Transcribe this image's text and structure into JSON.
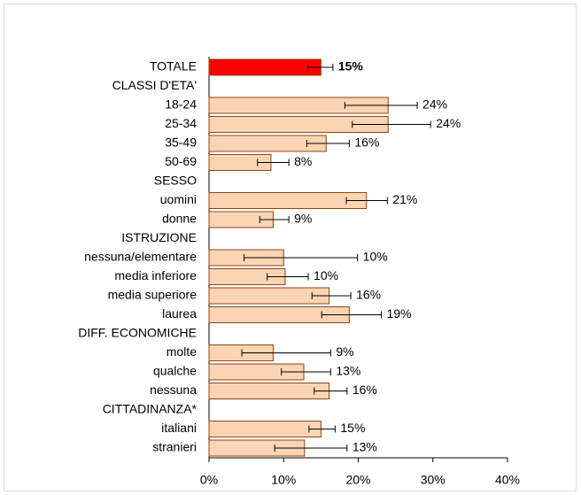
{
  "chart_data": {
    "type": "hbar_error",
    "categories": [
      "TOTALE",
      "CLASSI D'ETA'",
      "18-24",
      "25-34",
      "35-49",
      "50-69",
      "SESSO",
      "uomini",
      "donne",
      "ISTRUZIONE",
      "nessuna/elementare",
      "media inferiore",
      "media superiore",
      "laurea",
      "DIFF. ECONOMICHE",
      "molte",
      "qualche",
      "nessuna",
      "CITTADINANZA*",
      "italiani",
      "stranieri"
    ],
    "values": [
      15,
      null,
      24,
      24,
      15.7,
      8.3,
      null,
      21.1,
      8.6,
      null,
      10,
      10.2,
      16.1,
      18.8,
      null,
      8.6,
      12.7,
      16.1,
      null,
      15,
      12.8
    ],
    "value_labels": [
      "15%",
      null,
      "24%",
      "24%",
      "16%",
      "8%",
      null,
      "21%",
      "9%",
      null,
      "10%",
      "10%",
      "16%",
      "19%",
      null,
      "9%",
      "13%",
      "16%",
      null,
      "15%",
      "13%"
    ],
    "ci_low": [
      13.2,
      null,
      18.2,
      19.2,
      13.1,
      6.5,
      null,
      18.4,
      6.8,
      null,
      4.7,
      7.8,
      13.8,
      15.1,
      null,
      4.4,
      9.7,
      14.1,
      null,
      13.4,
      8.8
    ],
    "ci_high": [
      16.6,
      null,
      27.9,
      29.7,
      18.8,
      10.7,
      null,
      23.9,
      10.7,
      null,
      19.9,
      13.3,
      19.0,
      23.1,
      null,
      16.3,
      16.3,
      18.5,
      null,
      16.9,
      18.5
    ],
    "colors": [
      "#ff0000",
      null,
      "#fbd4b4",
      "#fbd4b4",
      "#fbd4b4",
      "#fbd4b4",
      null,
      "#fbd4b4",
      "#fbd4b4",
      null,
      "#fbd4b4",
      "#fbd4b4",
      "#fbd4b4",
      "#fbd4b4",
      null,
      "#fbd4b4",
      "#fbd4b4",
      "#fbd4b4",
      null,
      "#fbd4b4",
      "#fbd4b4"
    ],
    "xlim": [
      0,
      40
    ],
    "xticks": [
      {
        "value": 0,
        "label": "0%"
      },
      {
        "value": 10,
        "label": "10%"
      },
      {
        "value": 20,
        "label": "20%"
      },
      {
        "value": 30,
        "label": "30%"
      },
      {
        "value": 40,
        "label": "40%"
      }
    ]
  }
}
